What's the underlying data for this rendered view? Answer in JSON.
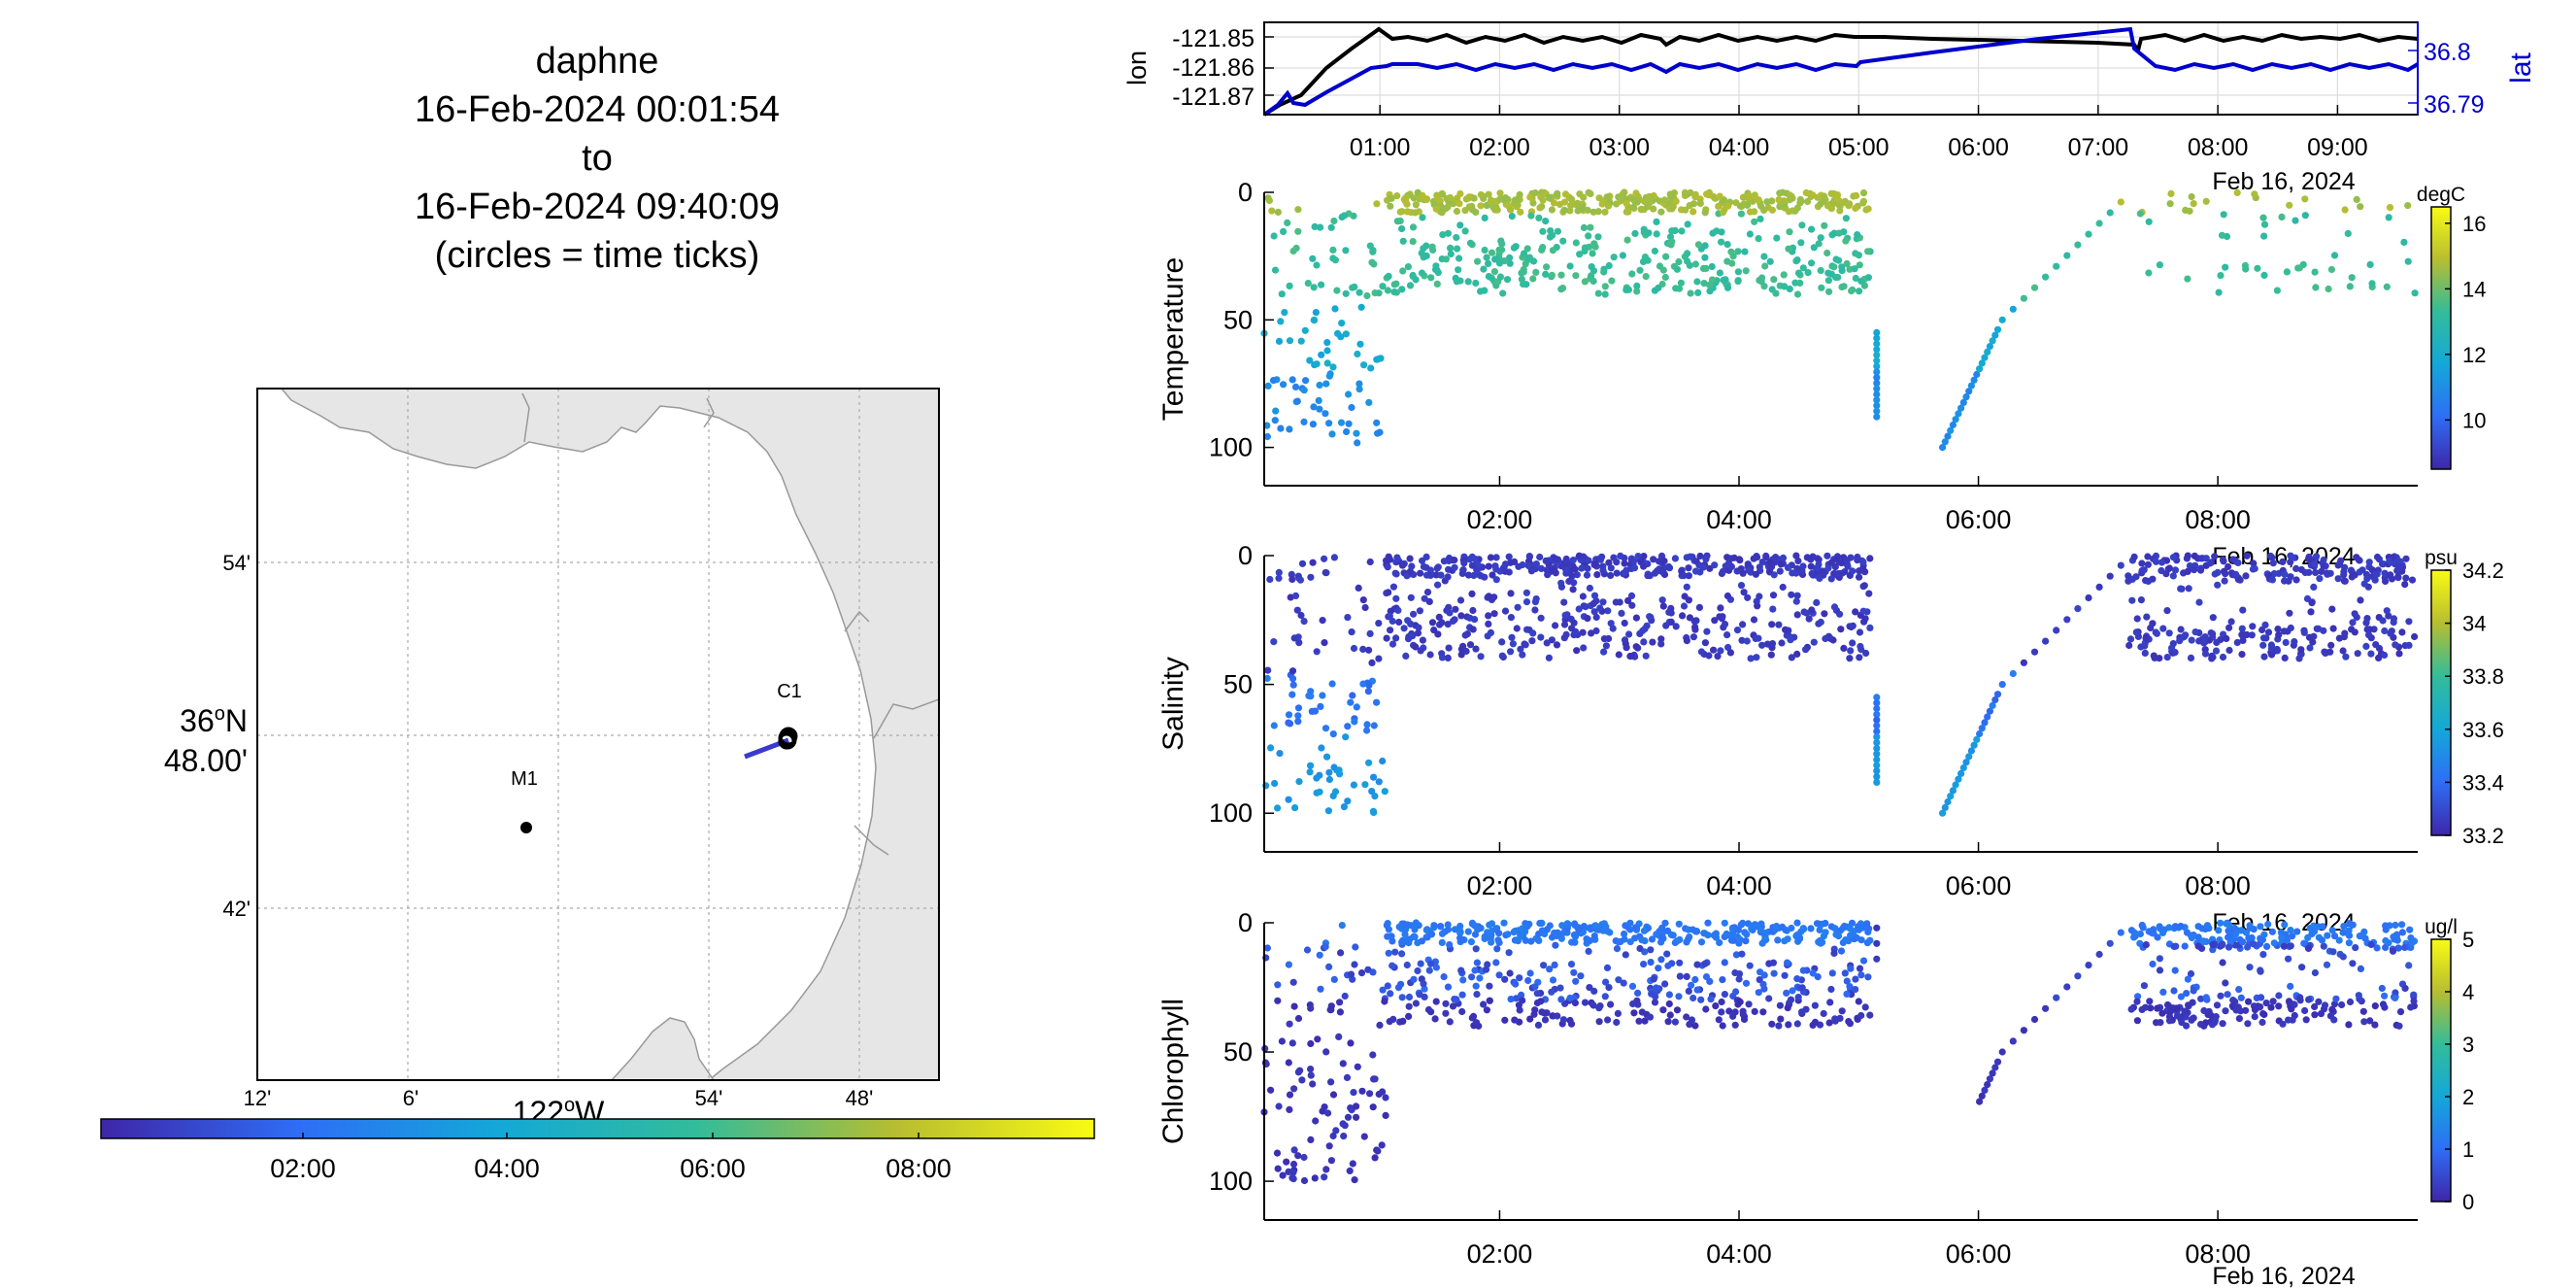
{
  "title_lines": [
    "daphne",
    "16-Feb-2024 00:01:54",
    "to",
    "16-Feb-2024 09:40:09",
    "(circles = time ticks)"
  ],
  "colors": {
    "track": "#3a3ad0",
    "lon_line": "#000000",
    "lat_line": "#0000cc",
    "land": "#e6e6e6",
    "coast": "#999999"
  },
  "map": {
    "lat_ticks": [
      "54'",
      "48.00'",
      "42'"
    ],
    "lat_prefix": "36",
    "lat_suffix": "N",
    "lon_ticks": [
      "12'",
      "6'",
      "54'",
      "48'"
    ],
    "lon_label": "122",
    "lon_suffix": "W",
    "markers": [
      {
        "label": "M1"
      },
      {
        "label": "C1"
      }
    ]
  },
  "time_colorbar": {
    "ticks": [
      "02:00",
      "04:00",
      "06:00",
      "08:00"
    ]
  },
  "chart_data": [
    {
      "type": "line",
      "title": "",
      "x_ticks": [
        "01:00",
        "02:00",
        "03:00",
        "04:00",
        "05:00",
        "06:00",
        "07:00",
        "08:00",
        "09:00"
      ],
      "date_label": "Feb 16, 2024",
      "ylabel_left": "lon",
      "ylabel_right": "lat",
      "yticks_left": [
        "-121.85",
        "-121.86",
        "-121.87"
      ],
      "yticks_right": [
        "36.8",
        "36.79"
      ],
      "series": [
        {
          "name": "lon"
        },
        {
          "name": "lat"
        }
      ]
    },
    {
      "type": "scatter",
      "ylabel": "Temperature",
      "units": "degC",
      "yticks": [
        "0",
        "50",
        "100"
      ],
      "x_ticks": [
        "02:00",
        "04:00",
        "06:00",
        "08:00"
      ],
      "date_label": "Feb 16, 2024",
      "cbar_ticks": [
        "16",
        "14",
        "12",
        "10"
      ],
      "ylim": [
        0,
        115
      ]
    },
    {
      "type": "scatter",
      "ylabel": "Salinity",
      "units": "psu",
      "yticks": [
        "0",
        "50",
        "100"
      ],
      "x_ticks": [
        "02:00",
        "04:00",
        "06:00",
        "08:00"
      ],
      "date_label": "Feb 16, 2024",
      "cbar_ticks": [
        "34.2",
        "34",
        "33.8",
        "33.6",
        "33.4",
        "33.2"
      ],
      "ylim": [
        0,
        115
      ]
    },
    {
      "type": "scatter",
      "ylabel": "Chlorophyll",
      "units": "ug/l",
      "yticks": [
        "0",
        "50",
        "100"
      ],
      "x_ticks": [
        "02:00",
        "04:00",
        "06:00",
        "08:00"
      ],
      "date_label": "Feb 16, 2024",
      "cbar_ticks": [
        "5",
        "4",
        "3",
        "2",
        "1",
        "0"
      ],
      "ylim": [
        0,
        115
      ]
    }
  ]
}
